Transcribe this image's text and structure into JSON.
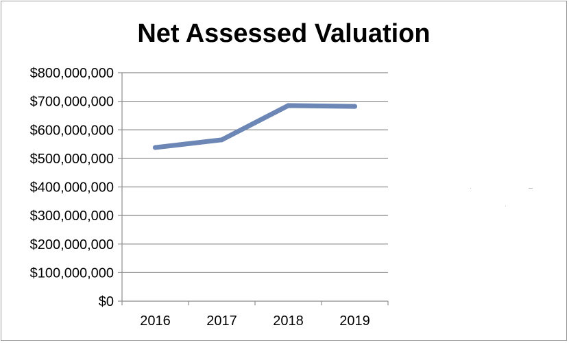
{
  "chart_data": {
    "type": "line",
    "title": "Net Assessed Valuation",
    "xlabel": "",
    "ylabel": "",
    "categories": [
      "2016",
      "2017",
      "2018",
      "2019"
    ],
    "series": [
      {
        "values": [
          538000000,
          565000000,
          685000000,
          682000000
        ],
        "color": "#6c86b5"
      }
    ],
    "ylim": [
      0,
      800000000
    ],
    "yticks": [
      "$0",
      "$100,000,000",
      "$200,000,000",
      "$300,000,000",
      "$400,000,000",
      "$500,000,000",
      "$600,000,000",
      "$700,000,000",
      "$800,000,000"
    ],
    "grid": true,
    "legend": "none"
  }
}
